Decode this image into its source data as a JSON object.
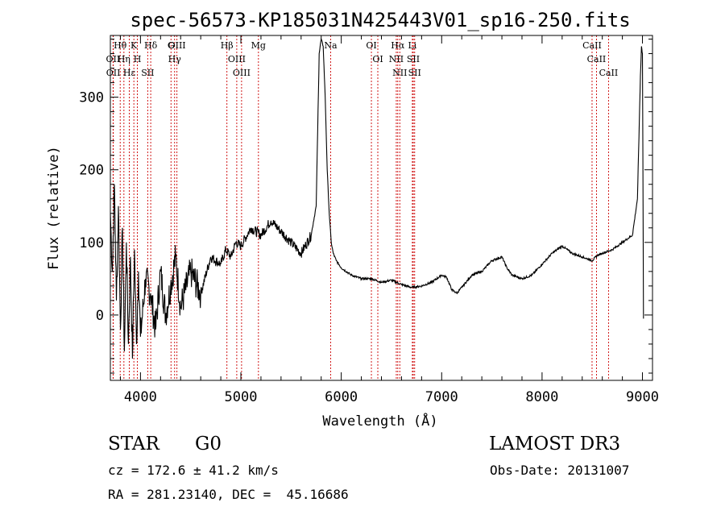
{
  "chart_data": {
    "type": "line",
    "title": "spec-56573-KP185031N425443V01_sp16-250.fits",
    "xlabel": "Wavelength (Å)",
    "ylabel": "Flux (relative)",
    "xlim": [
      3700,
      9100
    ],
    "ylim": [
      -90,
      385
    ],
    "xticks": [
      4000,
      5000,
      6000,
      7000,
      8000,
      9000
    ],
    "yticks": [
      0,
      100,
      200,
      300
    ],
    "series": [
      {
        "name": "spectrum",
        "x": [
          3700,
          3720,
          3740,
          3760,
          3780,
          3800,
          3820,
          3840,
          3860,
          3880,
          3900,
          3920,
          3940,
          3960,
          3980,
          4000,
          4050,
          4100,
          4150,
          4200,
          4250,
          4300,
          4350,
          4400,
          4500,
          4600,
          4700,
          4800,
          4850,
          4900,
          4950,
          5000,
          5100,
          5200,
          5300,
          5400,
          5500,
          5600,
          5700,
          5750,
          5780,
          5800,
          5820,
          5840,
          5860,
          5880,
          5900,
          5920,
          5950,
          6000,
          6100,
          6200,
          6300,
          6400,
          6500,
          6600,
          6700,
          6800,
          6900,
          7000,
          7050,
          7100,
          7150,
          7200,
          7300,
          7400,
          7500,
          7600,
          7650,
          7700,
          7800,
          7900,
          8000,
          8100,
          8200,
          8300,
          8400,
          8500,
          8550,
          8600,
          8700,
          8800,
          8900,
          8950,
          8980,
          8990,
          9000,
          9010
        ],
        "y": [
          140,
          60,
          180,
          20,
          150,
          -20,
          120,
          -50,
          100,
          -40,
          80,
          -60,
          90,
          -40,
          60,
          -30,
          50,
          30,
          -20,
          60,
          0,
          40,
          80,
          10,
          60,
          30,
          80,
          70,
          90,
          80,
          100,
          95,
          120,
          110,
          130,
          115,
          100,
          85,
          110,
          150,
          360,
          380,
          370,
          300,
          200,
          140,
          100,
          85,
          75,
          65,
          55,
          50,
          50,
          45,
          48,
          42,
          38,
          40,
          45,
          55,
          52,
          35,
          30,
          38,
          55,
          60,
          75,
          80,
          65,
          55,
          50,
          55,
          70,
          85,
          95,
          85,
          80,
          75,
          82,
          85,
          90,
          100,
          110,
          160,
          330,
          370,
          360,
          -5
        ]
      }
    ],
    "emission_lines": [
      {
        "label": "Hθ",
        "wavelength": 3798
      },
      {
        "label": "OII",
        "wavelength": 3727
      },
      {
        "label": "OII",
        "wavelength": 3729
      },
      {
        "label": "Hη",
        "wavelength": 3835
      },
      {
        "label": "Hε",
        "wavelength": 3889
      },
      {
        "label": "K",
        "wavelength": 3934
      },
      {
        "label": "H",
        "wavelength": 3969
      },
      {
        "label": "Hδ",
        "wavelength": 4102
      },
      {
        "label": "SII",
        "wavelength": 4072
      },
      {
        "label": "OIII",
        "wavelength": 4363
      },
      {
        "label": "Hγ",
        "wavelength": 4340
      },
      {
        "label": "G",
        "wavelength": 4304
      },
      {
        "label": "Hβ",
        "wavelength": 4861
      },
      {
        "label": "OIII",
        "wavelength": 4959
      },
      {
        "label": "OIII",
        "wavelength": 5007
      },
      {
        "label": "Mg",
        "wavelength": 5175
      },
      {
        "label": "Na",
        "wavelength": 5894
      },
      {
        "label": "OI",
        "wavelength": 6300
      },
      {
        "label": "OI",
        "wavelength": 6364
      },
      {
        "label": "Hα",
        "wavelength": 6563
      },
      {
        "label": "NII",
        "wavelength": 6548
      },
      {
        "label": "NII",
        "wavelength": 6583
      },
      {
        "label": "SII",
        "wavelength": 6717
      },
      {
        "label": "Li",
        "wavelength": 6708
      },
      {
        "label": "SII",
        "wavelength": 6731
      },
      {
        "label": "CaII",
        "wavelength": 8498
      },
      {
        "label": "CaII",
        "wavelength": 8542
      },
      {
        "label": "CaII",
        "wavelength": 8662
      }
    ]
  },
  "info": {
    "class": "STAR",
    "subclass": "G0",
    "survey": "LAMOST DR3",
    "cz": "cz = 172.6 ± 41.2 km/s",
    "obs_date": "Obs-Date: 20131007",
    "coords": "RA = 281.23140, DEC =  45.16686"
  },
  "colors": {
    "line_marker": "#cc0000",
    "spectrum": "#000000"
  }
}
